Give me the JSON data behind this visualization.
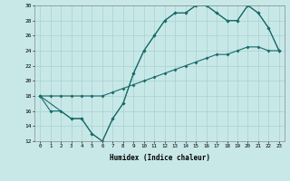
{
  "xlabel": "Humidex (Indice chaleur)",
  "bg_color": "#c8e8e8",
  "grid_color": "#a8d0d0",
  "line_color": "#1a6b6b",
  "xlim": [
    -0.5,
    23.5
  ],
  "ylim": [
    12,
    30
  ],
  "xticks": [
    0,
    1,
    2,
    3,
    4,
    5,
    6,
    7,
    8,
    9,
    10,
    11,
    12,
    13,
    14,
    15,
    16,
    17,
    18,
    19,
    20,
    21,
    22,
    23
  ],
  "yticks": [
    12,
    14,
    16,
    18,
    20,
    22,
    24,
    26,
    28,
    30
  ],
  "line1_x": [
    0,
    1,
    2,
    3,
    4,
    5,
    6,
    7,
    8,
    9,
    10,
    11,
    12,
    13,
    14,
    15,
    16,
    17,
    18,
    19,
    20,
    21,
    22,
    23
  ],
  "line1_y": [
    18,
    16,
    16,
    15,
    15,
    13,
    12,
    15,
    17,
    21,
    24,
    26,
    28,
    29,
    29,
    30,
    30,
    29,
    28,
    28,
    30,
    29,
    27,
    24
  ],
  "line2_x": [
    0,
    3,
    4,
    5,
    6,
    7,
    8,
    9,
    10,
    11,
    12,
    13,
    14,
    15,
    16,
    17,
    18,
    19,
    20,
    21,
    22,
    23
  ],
  "line2_y": [
    18,
    15,
    15,
    13,
    12,
    15,
    17,
    21,
    24,
    26,
    28,
    29,
    29,
    30,
    30,
    29,
    28,
    28,
    30,
    29,
    27,
    24
  ],
  "line3_x": [
    0,
    1,
    2,
    3,
    4,
    5,
    6,
    7,
    8,
    9,
    10,
    11,
    12,
    13,
    14,
    15,
    16,
    17,
    18,
    19,
    20,
    21,
    22,
    23
  ],
  "line3_y": [
    18,
    18,
    18,
    18,
    18,
    18,
    18,
    18.5,
    19,
    19.5,
    20,
    20.5,
    21,
    21.5,
    22,
    22.5,
    23,
    23.5,
    23.5,
    24,
    24.5,
    24.5,
    24,
    24
  ]
}
